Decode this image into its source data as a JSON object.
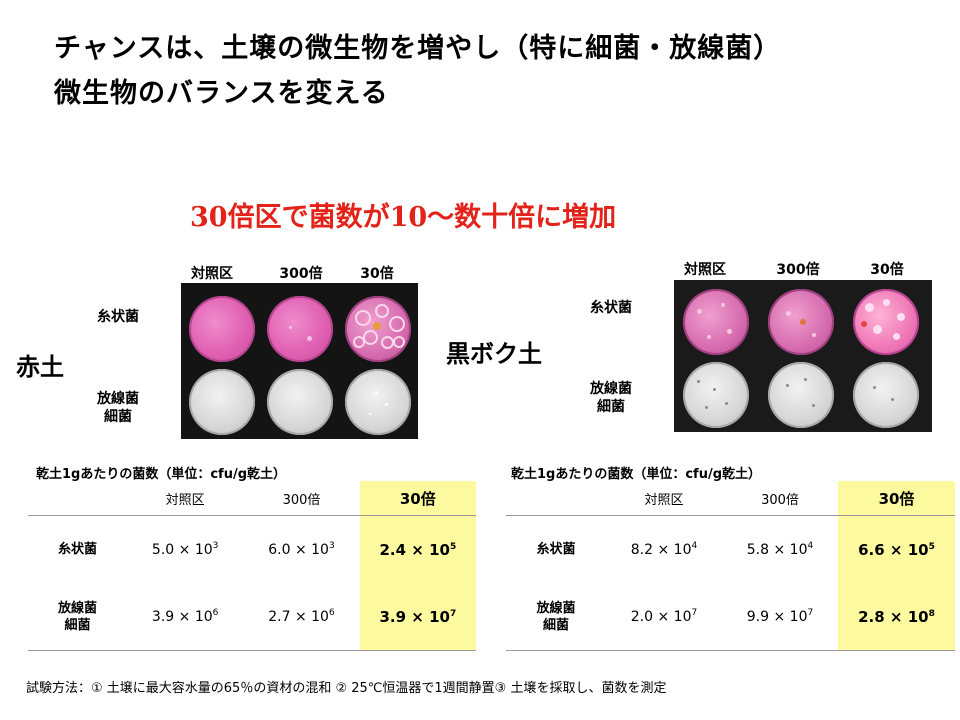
{
  "title": {
    "line1": "チャンスは、土壌の微生物を増やし（特に細菌・放線菌）",
    "line2": "微生物のバランスを変える"
  },
  "highlight": "30倍区で菌数が10～数十倍に増加",
  "soils": {
    "red": "赤土",
    "black": "黒ボク土"
  },
  "photo_labels": {
    "columns": [
      "対照区",
      "300倍",
      "30倍"
    ],
    "row_filamentous": "糸状菌",
    "row_actino_1": "放線菌",
    "row_actino_2": "細菌"
  },
  "tables": [
    {
      "caption": "乾土1gあたりの菌数（単位：cfu/g乾土）",
      "columns": [
        "対照区",
        "300倍",
        "30倍"
      ],
      "rows": [
        {
          "label1": "糸状菌",
          "label2": "",
          "cells": [
            {
              "m": "5.0",
              "e": "3"
            },
            {
              "m": "6.0",
              "e": "3"
            },
            {
              "m": "2.4",
              "e": "5"
            }
          ]
        },
        {
          "label1": "放線菌",
          "label2": "細菌",
          "cells": [
            {
              "m": "3.9",
              "e": "6"
            },
            {
              "m": "2.7",
              "e": "6"
            },
            {
              "m": "3.9",
              "e": "7"
            }
          ]
        }
      ]
    },
    {
      "caption": "乾土1gあたりの菌数（単位：cfu/g乾土）",
      "columns": [
        "対照区",
        "300倍",
        "30倍"
      ],
      "rows": [
        {
          "label1": "糸状菌",
          "label2": "",
          "cells": [
            {
              "m": "8.2",
              "e": "4"
            },
            {
              "m": "5.8",
              "e": "4"
            },
            {
              "m": "6.6",
              "e": "5"
            }
          ]
        },
        {
          "label1": "放線菌",
          "label2": "細菌",
          "cells": [
            {
              "m": "2.0",
              "e": "7"
            },
            {
              "m": "9.9",
              "e": "7"
            },
            {
              "m": "2.8",
              "e": "8"
            }
          ]
        }
      ]
    }
  ],
  "times_sign": "×",
  "base": "10",
  "method": "試験方法：① 土壌に最大容水量の65％の資材の混和  ② 25℃恒温器で1週間静置③ 土壌を採取し、菌数を測定",
  "colors": {
    "highlight_text": "#e2231a",
    "highlight_cell": "#fdf99e",
    "photo_background": "#141414"
  }
}
